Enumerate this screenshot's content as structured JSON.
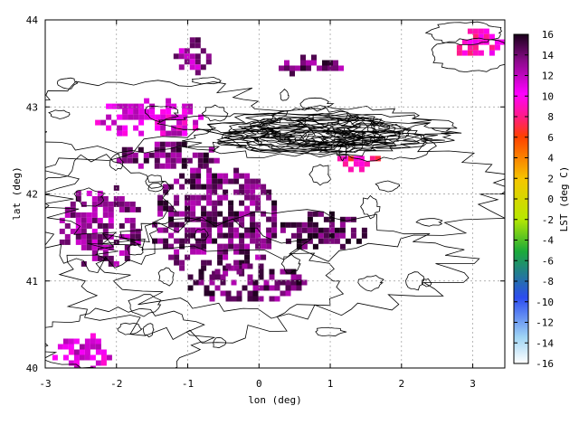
{
  "chart_data": {
    "type": "heatmap",
    "xlabel": "lon (deg)",
    "ylabel": "lat (deg)",
    "xlim": [
      -3,
      3.45
    ],
    "ylim": [
      40,
      44
    ],
    "x_ticks": [
      "-3",
      "-2",
      "-1",
      "0",
      "1",
      "2",
      "3"
    ],
    "y_ticks": [
      "40",
      "41",
      "42",
      "43",
      "44"
    ],
    "grid": true,
    "colorbar": {
      "label": "LST (deg C)",
      "range": [
        -16,
        16
      ],
      "ticks": [
        "-16",
        "-14",
        "-12",
        "-10",
        "-8",
        "-6",
        "-4",
        "-2",
        "0",
        "2",
        "4",
        "6",
        "8",
        "10",
        "12",
        "14",
        "16"
      ],
      "colors": [
        "#ffffff",
        "#9fd4f4",
        "#2c4cf0",
        "#1aaa3a",
        "#b8e800",
        "#f5c600",
        "#ff4000",
        "#ff1c86",
        "#ff00ff",
        "#8a0a8a",
        "#1a001a"
      ]
    },
    "regions": [
      {
        "lon": [
          -2.8,
          -1.7
        ],
        "lat": [
          41.2,
          42.1
        ],
        "lst": 13
      },
      {
        "lon": [
          -2.0,
          -0.5
        ],
        "lat": [
          42.3,
          42.6
        ],
        "lst": 14
      },
      {
        "lon": [
          -2.3,
          -0.8
        ],
        "lat": [
          42.7,
          43.1
        ],
        "lst": 11
      },
      {
        "lon": [
          -1.5,
          0.2
        ],
        "lat": [
          41.1,
          42.3
        ],
        "lst": 14
      },
      {
        "lon": [
          0.3,
          1.5
        ],
        "lat": [
          41.4,
          41.8
        ],
        "lst": 15
      },
      {
        "lon": [
          -1.0,
          0.6
        ],
        "lat": [
          40.8,
          41.2
        ],
        "lst": 14
      },
      {
        "lon": [
          -2.9,
          -2.1
        ],
        "lat": [
          40.0,
          40.4
        ],
        "lst": 11
      },
      {
        "lon": [
          1.1,
          1.7
        ],
        "lat": [
          42.3,
          42.5
        ],
        "lst": 8
      },
      {
        "lon": [
          -1.2,
          -0.7
        ],
        "lat": [
          43.4,
          43.8
        ],
        "lst": 13
      },
      {
        "lon": [
          0.2,
          1.2
        ],
        "lat": [
          43.4,
          43.6
        ],
        "lst": 14
      },
      {
        "lon": [
          2.7,
          3.4
        ],
        "lat": [
          43.6,
          43.9
        ],
        "lst": 9
      }
    ]
  }
}
